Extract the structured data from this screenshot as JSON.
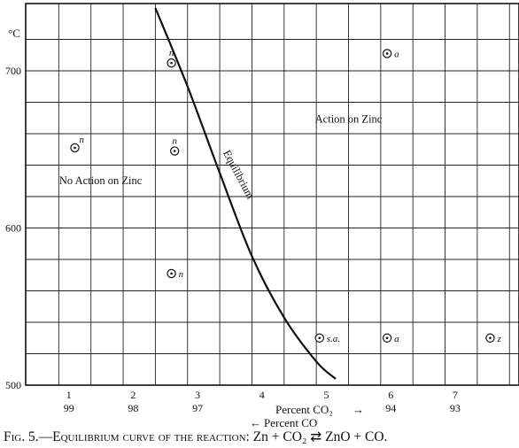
{
  "chart_data": {
    "type": "scatter",
    "ylabel": "°C",
    "x_axis_label": "Percent CO₂",
    "x_axis_arrow": "→",
    "secondary_x_label": "Percent CO",
    "secondary_x_arrow": "←",
    "xlim": [
      0,
      7.5
    ],
    "ylim": [
      500,
      740
    ],
    "x_ticks": [
      {
        "co2": 1,
        "co": 99
      },
      {
        "co2": 2,
        "co": 98
      },
      {
        "co2": 3,
        "co": 97
      },
      {
        "co2": 4,
        "co": ""
      },
      {
        "co2": 5,
        "co": ""
      },
      {
        "co2": 6,
        "co": 94
      },
      {
        "co2": 7,
        "co": 93
      }
    ],
    "y_ticks": [
      500,
      600,
      700
    ],
    "grid": true,
    "region_labels": [
      {
        "text": "Action on Zinc",
        "x": 5.0,
        "y": 667
      },
      {
        "text": "No Action on Zinc",
        "x": 1.15,
        "y": 628
      }
    ],
    "curve": {
      "label": "Equilibrium",
      "points": [
        [
          2.0,
          740
        ],
        [
          2.5,
          690
        ],
        [
          3.0,
          635
        ],
        [
          3.5,
          582
        ],
        [
          4.0,
          543
        ],
        [
          4.5,
          515
        ],
        [
          4.8,
          504
        ]
      ]
    },
    "points": [
      {
        "x": 2.25,
        "y": 705,
        "label": "n",
        "label_pos": "above"
      },
      {
        "x": 5.6,
        "y": 711,
        "label": "a",
        "label_pos": "right"
      },
      {
        "x": 0.75,
        "y": 651,
        "label": "n",
        "label_pos": "above-right"
      },
      {
        "x": 2.3,
        "y": 649,
        "label": "n",
        "label_pos": "above"
      },
      {
        "x": 2.25,
        "y": 571,
        "label": "n",
        "label_pos": "right"
      },
      {
        "x": 4.55,
        "y": 530,
        "label": "s.a.",
        "label_pos": "right"
      },
      {
        "x": 5.6,
        "y": 530,
        "label": "a",
        "label_pos": "right"
      },
      {
        "x": 7.2,
        "y": 530,
        "label": "z",
        "label_pos": "right"
      }
    ]
  },
  "caption": {
    "prefix": "Fig. 5.—",
    "title": "Equilibrium curve of the reaction:",
    "equation": "Zn + CO₂ ⇄ ZnO + CO."
  }
}
